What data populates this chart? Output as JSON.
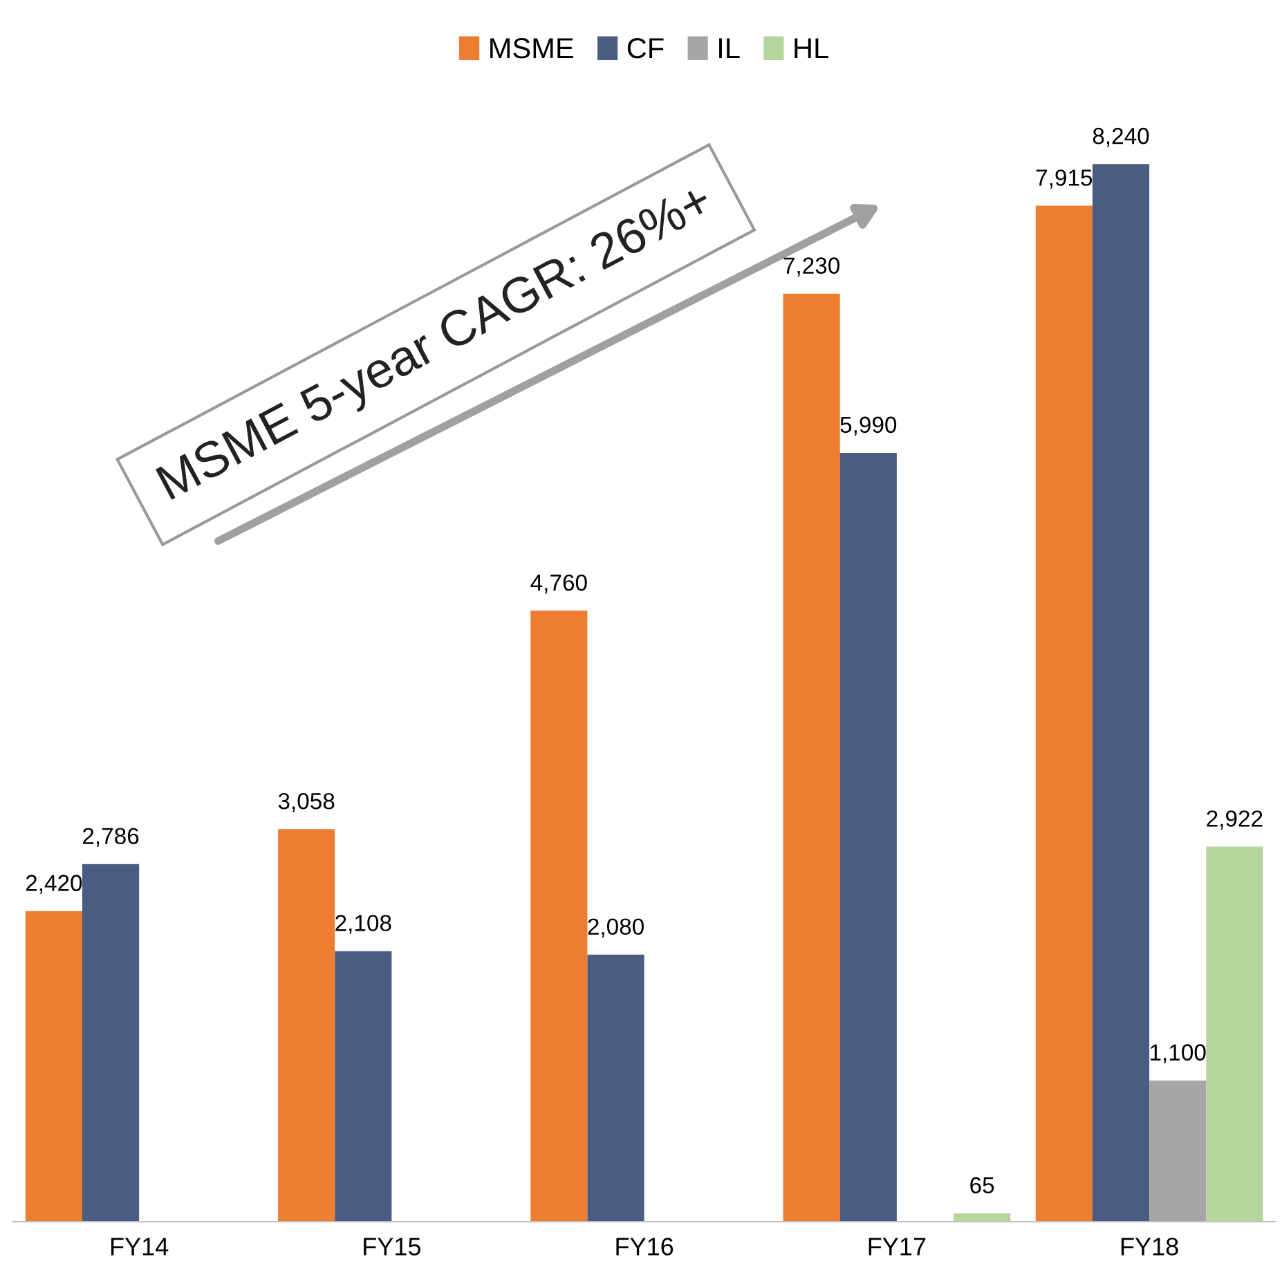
{
  "chart_data": {
    "type": "bar",
    "categories": [
      "FY14",
      "FY15",
      "FY16",
      "FY17",
      "FY18"
    ],
    "series": [
      {
        "name": "MSME",
        "color": "#ed7d31",
        "values": [
          2420,
          3058,
          4760,
          7230,
          7915
        ],
        "value_labels": [
          "2,420",
          "3,058",
          "4,760",
          "7,230",
          "7,915"
        ]
      },
      {
        "name": "CF",
        "color": "#4a5c82",
        "values": [
          2786,
          2108,
          2080,
          5990,
          8240
        ],
        "value_labels": [
          "2,786",
          "2,108",
          "2,080",
          "5,990",
          "8,240"
        ]
      },
      {
        "name": "IL",
        "color": "#a6a6a6",
        "values": [
          null,
          null,
          null,
          null,
          1100
        ],
        "value_labels": [
          null,
          null,
          null,
          null,
          "1,100"
        ]
      },
      {
        "name": "HL",
        "color": "#b4d59c",
        "values": [
          null,
          null,
          null,
          65,
          2922
        ],
        "value_labels": [
          null,
          null,
          null,
          "65",
          "2,922"
        ]
      }
    ],
    "legend": "top",
    "grid": false,
    "tick_labels": "x",
    "annotations": [
      "MSME 5-year CAGR: 26%+"
    ]
  }
}
